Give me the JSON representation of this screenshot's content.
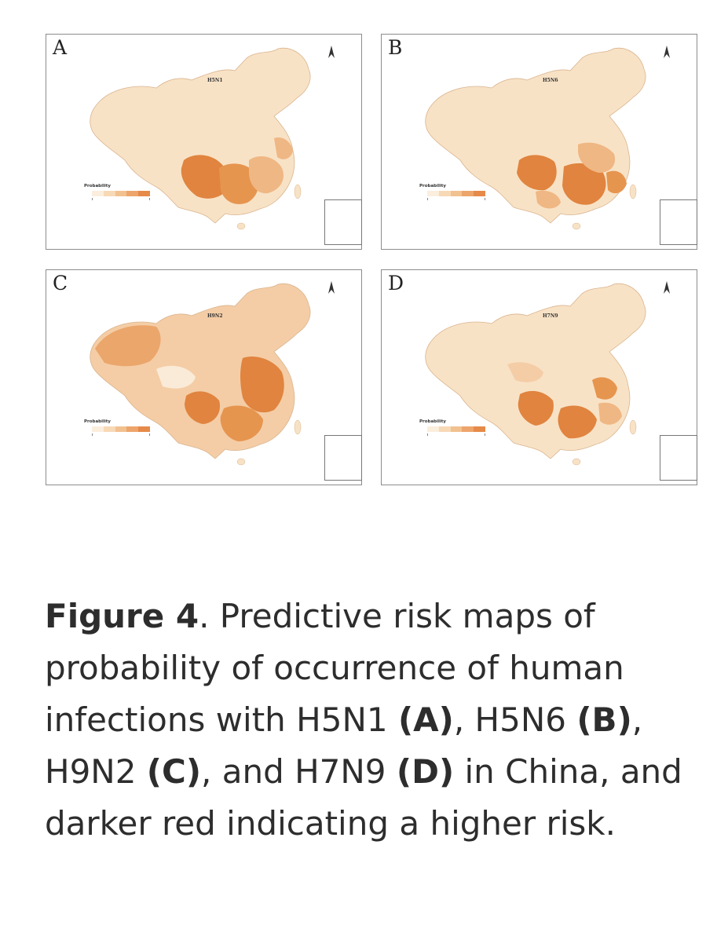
{
  "figure": {
    "panels": [
      {
        "id": "A",
        "letter": "A",
        "subtype": "H5N1",
        "legend_title": "Probability",
        "colors": {
          "country": "#f8e2c6",
          "mid": "#efb784",
          "high": "#e0843f"
        }
      },
      {
        "id": "B",
        "letter": "B",
        "subtype": "H5N6",
        "legend_title": "Probability",
        "colors": {
          "country": "#f8e2c6",
          "mid": "#efb784",
          "high": "#e0843f"
        }
      },
      {
        "id": "C",
        "letter": "C",
        "subtype": "H9N2",
        "legend_title": "Probability",
        "colors": {
          "country": "#f8e2c6",
          "mid": "#efb784",
          "high": "#e0843f"
        }
      },
      {
        "id": "D",
        "letter": "D",
        "subtype": "H7N9",
        "legend_title": "Probability",
        "colors": {
          "country": "#f8e2c6",
          "mid": "#efb784",
          "high": "#e0843f"
        }
      }
    ],
    "legend_colors": [
      "#fbeedd",
      "#f7d9b6",
      "#f2c190",
      "#eda56c",
      "#e68a49"
    ]
  },
  "caption": {
    "label": "Figure 4",
    "t1": ". Predictive risk maps of probability of occurrence of human infections with H5N1 ",
    "a": "(A)",
    "t2": ", H5N6 ",
    "b": "(B)",
    "t3": ", H9N2 ",
    "c": "(C)",
    "t4": ", and H7N9 ",
    "d": "(D)",
    "t5": " in China, and darker red indicating a higher risk."
  }
}
